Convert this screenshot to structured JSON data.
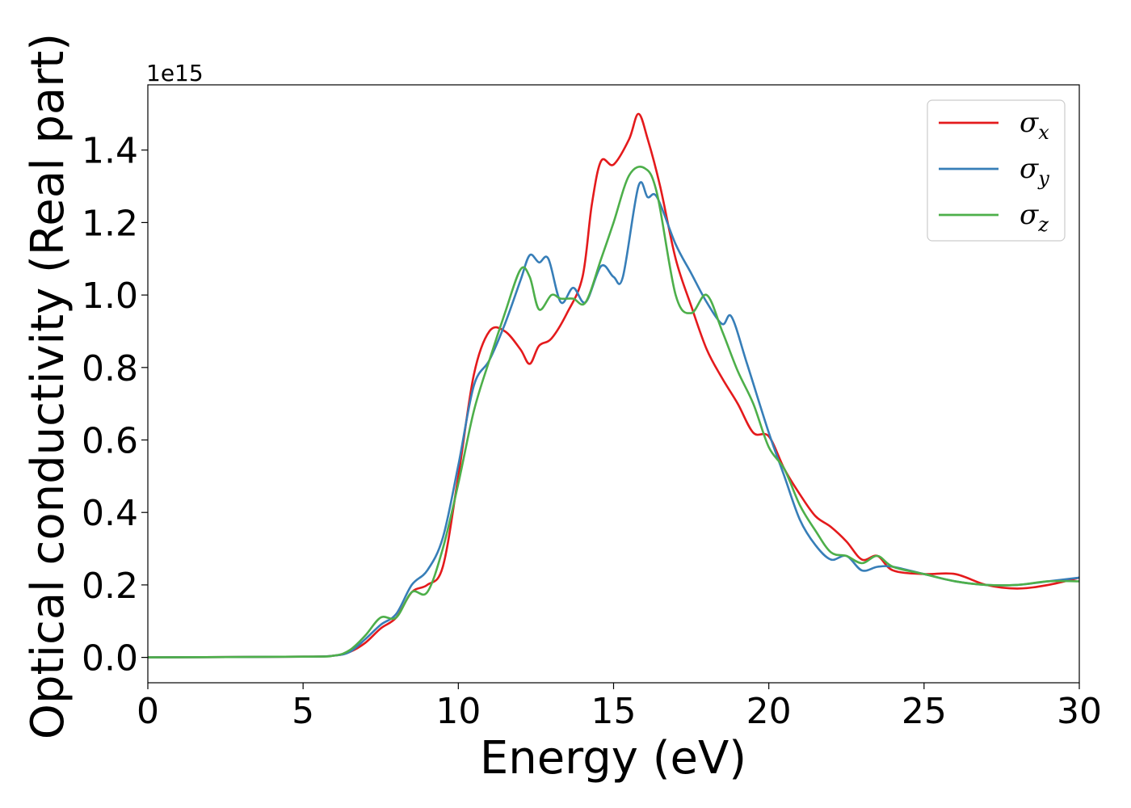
{
  "chart_data": {
    "type": "line",
    "xlabel": "Energy (eV)",
    "ylabel": "Optical conductivity (Real part)",
    "y_offset_label": "1e15",
    "xlim": [
      0,
      30
    ],
    "ylim": [
      -0.07,
      1.58
    ],
    "xticks": [
      0,
      5,
      10,
      15,
      20,
      25,
      30
    ],
    "xtick_labels": [
      "0",
      "5",
      "10",
      "15",
      "20",
      "25",
      "30"
    ],
    "yticks": [
      0.0,
      0.2,
      0.4,
      0.6,
      0.8,
      1.0,
      1.2,
      1.4
    ],
    "ytick_labels": [
      "0.0",
      "0.2",
      "0.4",
      "0.6",
      "0.8",
      "1.0",
      "1.2",
      "1.4"
    ],
    "grid": false,
    "legend_position": "top-right",
    "series": [
      {
        "name": "σx",
        "symbol": "σ",
        "subscript": "x",
        "color": "#e41a1c",
        "x": [
          0,
          5,
          6,
          6.5,
          7,
          7.5,
          8,
          8.5,
          9,
          9.5,
          10,
          10.5,
          11,
          11.5,
          12,
          12.3,
          12.6,
          13,
          13.5,
          14,
          14.3,
          14.6,
          15,
          15.5,
          15.8,
          16.1,
          16.5,
          17,
          17.5,
          18,
          18.5,
          19,
          19.5,
          20,
          20.5,
          21,
          21.5,
          22,
          22.5,
          23,
          23.5,
          24,
          25,
          26,
          27,
          28,
          29,
          30
        ],
        "y": [
          0,
          0.002,
          0.005,
          0.015,
          0.04,
          0.08,
          0.11,
          0.18,
          0.2,
          0.25,
          0.5,
          0.78,
          0.9,
          0.9,
          0.85,
          0.81,
          0.86,
          0.88,
          0.95,
          1.05,
          1.25,
          1.37,
          1.36,
          1.43,
          1.5,
          1.43,
          1.3,
          1.1,
          0.97,
          0.85,
          0.77,
          0.7,
          0.62,
          0.61,
          0.52,
          0.45,
          0.39,
          0.36,
          0.32,
          0.27,
          0.28,
          0.24,
          0.23,
          0.23,
          0.2,
          0.19,
          0.2,
          0.22
        ]
      },
      {
        "name": "σy",
        "symbol": "σ",
        "subscript": "y",
        "color": "#377eb8",
        "x": [
          0,
          5,
          6,
          6.5,
          7,
          7.5,
          8,
          8.5,
          9,
          9.5,
          10,
          10.5,
          11,
          11.5,
          12,
          12.3,
          12.6,
          12.9,
          13.3,
          13.7,
          14.1,
          14.6,
          15,
          15.3,
          15.8,
          16.1,
          16.4,
          17,
          17.5,
          18,
          18.5,
          18.8,
          19.3,
          20,
          20.5,
          21,
          21.5,
          22,
          22.5,
          23,
          23.5,
          24,
          25,
          26,
          27,
          28,
          29,
          30
        ],
        "y": [
          0,
          0.002,
          0.005,
          0.015,
          0.05,
          0.09,
          0.12,
          0.2,
          0.24,
          0.33,
          0.53,
          0.75,
          0.82,
          0.92,
          1.04,
          1.11,
          1.09,
          1.1,
          0.98,
          1.02,
          0.98,
          1.08,
          1.05,
          1.05,
          1.3,
          1.27,
          1.27,
          1.14,
          1.06,
          0.98,
          0.92,
          0.94,
          0.81,
          0.62,
          0.5,
          0.38,
          0.31,
          0.27,
          0.28,
          0.24,
          0.25,
          0.25,
          0.23,
          0.21,
          0.2,
          0.2,
          0.21,
          0.22
        ]
      },
      {
        "name": "σz",
        "symbol": "σ",
        "subscript": "z",
        "color": "#4daf4a",
        "x": [
          0,
          5,
          6,
          6.5,
          7,
          7.5,
          8,
          8.5,
          9,
          9.5,
          10,
          10.5,
          11,
          11.5,
          12,
          12.3,
          12.6,
          13,
          13.3,
          13.7,
          14.1,
          14.6,
          15,
          15.5,
          16,
          16.4,
          17,
          17.5,
          18,
          18.5,
          19,
          19.5,
          20,
          20.5,
          21,
          21.5,
          22,
          22.5,
          23,
          23.5,
          24,
          25,
          26,
          27,
          28,
          29,
          30
        ],
        "y": [
          0,
          0.002,
          0.005,
          0.02,
          0.06,
          0.11,
          0.11,
          0.18,
          0.18,
          0.3,
          0.48,
          0.68,
          0.82,
          0.95,
          1.07,
          1.05,
          0.96,
          1.0,
          0.99,
          0.99,
          0.98,
          1.1,
          1.2,
          1.33,
          1.35,
          1.28,
          1.0,
          0.95,
          1.0,
          0.9,
          0.79,
          0.7,
          0.58,
          0.52,
          0.42,
          0.35,
          0.29,
          0.28,
          0.26,
          0.28,
          0.25,
          0.23,
          0.21,
          0.2,
          0.2,
          0.21,
          0.21
        ]
      }
    ]
  }
}
